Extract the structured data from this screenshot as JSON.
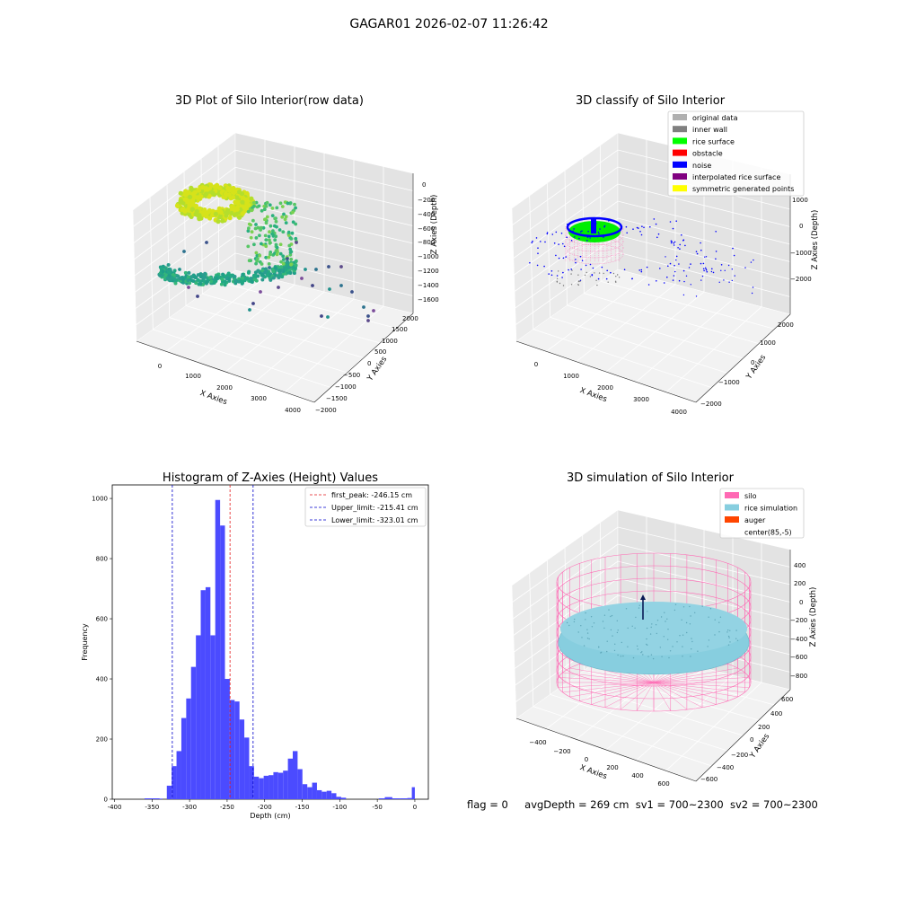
{
  "figure": {
    "suptitle": "GAGAR01 2026-02-07 11:26:42"
  },
  "status": {
    "flag": "flag = 0",
    "avg_depth": "avgDepth = 269 cm",
    "sv1": "sv1 = 700~2300",
    "sv2": "sv2 = 700~2300"
  },
  "colors": {
    "histogram_bar": "#4b4bff",
    "peak_line": "#e41a1c",
    "limit_line": "#0000cc",
    "silo_wire": "#ff69b4",
    "rice_surface": "#87cedf",
    "auger": "#ff4500",
    "pane": "#f2f2f2",
    "grid": "#d9d9d9"
  },
  "chart_data": [
    {
      "type": "scatter",
      "projection": "3d",
      "title": "3D Plot of Silo Interior(row data)",
      "xlabel": "X Axies",
      "ylabel": "Y Axies",
      "zlabel": "Z Axies (Depth)",
      "x_ticks": [
        "0",
        "1000",
        "2000",
        "3000",
        "4000"
      ],
      "y_ticks": [
        "−2000",
        "−1500",
        "−1000",
        "−500",
        "0",
        "500",
        "1000",
        "1500",
        "2000"
      ],
      "z_ticks": [
        "0",
        "−200",
        "−400",
        "−600",
        "−800",
        "−1000",
        "−1200",
        "−1400",
        "−1600"
      ],
      "colormap": "viridis"
    },
    {
      "type": "scatter",
      "projection": "3d",
      "title": "3D classify of Silo Interior",
      "xlabel": "X Axies",
      "ylabel": "Y Axies",
      "zlabel": "Z Axies (Depth)",
      "x_ticks": [
        "0",
        "1000",
        "2000",
        "3000",
        "4000"
      ],
      "y_ticks": [
        "−2000",
        "−1000",
        "0",
        "1000",
        "2000"
      ],
      "z_ticks": [
        "1000",
        "0",
        "−1000",
        "−2000"
      ],
      "legend_position": "top-right",
      "legend": [
        {
          "label": "original data",
          "color": "#b0b0b0"
        },
        {
          "label": "inner wall",
          "color": "#808080"
        },
        {
          "label": "rice surface",
          "color": "#00ff00"
        },
        {
          "label": "obstacle",
          "color": "#ff0000"
        },
        {
          "label": "noise",
          "color": "#0000ff"
        },
        {
          "label": "interpolated rice surface",
          "color": "#800080"
        },
        {
          "label": "symmetric generated points",
          "color": "#ffff00"
        }
      ]
    },
    {
      "type": "bar",
      "title": "Histogram of Z-Axies (Height) Values",
      "xlabel": "Depth (cm)",
      "ylabel": "Frequency",
      "xlim": [
        -403,
        18
      ],
      "ylim": [
        0,
        1045
      ],
      "x_ticks": [
        -400,
        -350,
        -300,
        -250,
        -200,
        -150,
        -100,
        -50,
        0
      ],
      "y_ticks": [
        0,
        200,
        400,
        600,
        800,
        1000
      ],
      "bin_width": 6.45,
      "bin_start": -330.3,
      "values": [
        45,
        110,
        160,
        270,
        335,
        440,
        545,
        695,
        705,
        545,
        995,
        910,
        400,
        330,
        325,
        265,
        205,
        110,
        75,
        70,
        78,
        80,
        90,
        88,
        95,
        135,
        160,
        100,
        50,
        40,
        55,
        30,
        25,
        28,
        20,
        8,
        5
      ],
      "tail": [
        {
          "x_start": -360,
          "x_end": -350,
          "value": 3
        },
        {
          "x_start": -350,
          "x_end": -340,
          "value": 3
        },
        {
          "x_start": -341,
          "x_end": -336,
          "value": 2
        },
        {
          "x_start": -48,
          "x_end": -40,
          "value": 3
        },
        {
          "x_start": -40,
          "x_end": -30,
          "value": 7
        },
        {
          "x_start": -30,
          "x_end": -20,
          "value": 3
        },
        {
          "x_start": -20,
          "x_end": -10,
          "value": 3
        },
        {
          "x_start": -10,
          "x_end": -4,
          "value": 4
        },
        {
          "x_start": -4,
          "x_end": 0,
          "value": 40
        }
      ],
      "vlines": [
        {
          "label": "first_peak: -246.15 cm",
          "x": -246.15,
          "color": "#e41a1c"
        },
        {
          "label": "Upper_limit: -215.41 cm",
          "x": -215.41,
          "color": "#0000cc"
        },
        {
          "label": "Lower_limit: -323.01 cm",
          "x": -323.01,
          "color": "#0000cc"
        }
      ],
      "legend_position": "top-right"
    },
    {
      "type": "surface",
      "projection": "3d",
      "title": "3D simulation of Silo Interior",
      "xlabel": "X Axies",
      "ylabel": "Y Axies",
      "zlabel": "Z Axies (Depth)",
      "x_ticks": [
        "−400",
        "−200",
        "0",
        "200",
        "400",
        "600"
      ],
      "y_ticks": [
        "−600",
        "−400",
        "−200",
        "0",
        "200",
        "400",
        "600"
      ],
      "z_ticks": [
        "400",
        "200",
        "0",
        "−200",
        "−400",
        "−600",
        "−800"
      ],
      "legend_position": "top-right",
      "legend": [
        {
          "label": "silo",
          "color": "#ff69b4"
        },
        {
          "label": "rice simulation",
          "color": "#87cedf"
        },
        {
          "label": "auger",
          "color": "#ff4500"
        },
        {
          "label": "center(85,-5)",
          "color": ""
        }
      ]
    }
  ]
}
